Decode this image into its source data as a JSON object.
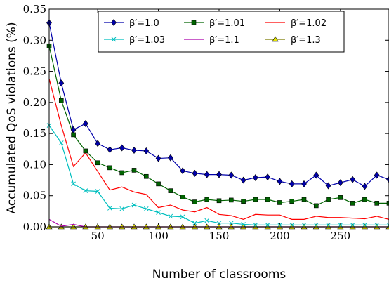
{
  "chart_data": {
    "type": "line",
    "xlabel": "Number of classrooms",
    "ylabel": "Accumulated QoS violations (%)",
    "xlim": [
      10,
      290
    ],
    "ylim": [
      0,
      0.35
    ],
    "xticks": [
      50,
      100,
      150,
      200,
      250
    ],
    "xtick_labels": [
      "50",
      "100",
      "150",
      "200",
      "250"
    ],
    "yticks": [
      0.0,
      0.05,
      0.1,
      0.15,
      0.2,
      0.25,
      0.3,
      0.35
    ],
    "ytick_labels": [
      "0.00",
      "0.05",
      "0.10",
      "0.15",
      "0.20",
      "0.25",
      "0.30",
      "0.35"
    ],
    "legend_position": "top-center",
    "x": [
      10,
      20,
      30,
      40,
      50,
      60,
      70,
      80,
      90,
      100,
      110,
      120,
      130,
      140,
      150,
      160,
      170,
      180,
      190,
      200,
      210,
      220,
      230,
      240,
      250,
      260,
      270,
      280,
      290
    ],
    "series": [
      {
        "name": "β′=1.0",
        "color": "#0000aa",
        "marker": "diamond",
        "values": [
          0.328,
          0.231,
          0.156,
          0.166,
          0.134,
          0.124,
          0.127,
          0.123,
          0.122,
          0.11,
          0.111,
          0.09,
          0.086,
          0.084,
          0.084,
          0.083,
          0.075,
          0.079,
          0.08,
          0.073,
          0.069,
          0.069,
          0.083,
          0.066,
          0.071,
          0.076,
          0.065,
          0.083,
          0.076
        ]
      },
      {
        "name": "β′=1.01",
        "color": "#006400",
        "marker": "square",
        "values": [
          0.291,
          0.203,
          0.148,
          0.122,
          0.103,
          0.095,
          0.087,
          0.091,
          0.081,
          0.069,
          0.058,
          0.048,
          0.04,
          0.044,
          0.042,
          0.043,
          0.041,
          0.044,
          0.044,
          0.039,
          0.041,
          0.044,
          0.034,
          0.044,
          0.047,
          0.038,
          0.044,
          0.038,
          0.038
        ]
      },
      {
        "name": "β′=1.02",
        "color": "#ff0000",
        "marker": "none",
        "values": [
          0.238,
          0.163,
          0.097,
          0.119,
          0.089,
          0.059,
          0.064,
          0.056,
          0.052,
          0.031,
          0.035,
          0.027,
          0.024,
          0.031,
          0.02,
          0.018,
          0.012,
          0.02,
          0.019,
          0.019,
          0.012,
          0.012,
          0.017,
          0.015,
          0.015,
          0.014,
          0.013,
          0.017,
          0.012
        ]
      },
      {
        "name": "β′=1.03",
        "color": "#00bfbf",
        "marker": "x",
        "values": [
          0.163,
          0.135,
          0.069,
          0.058,
          0.057,
          0.03,
          0.029,
          0.035,
          0.029,
          0.023,
          0.017,
          0.016,
          0.006,
          0.01,
          0.006,
          0.006,
          0.004,
          0.003,
          0.003,
          0.003,
          0.003,
          0.003,
          0.003,
          0.003,
          0.003,
          0.003,
          0.003,
          0.003,
          0.003
        ]
      },
      {
        "name": "β′=1.1",
        "color": "#aa00aa",
        "marker": "none",
        "values": [
          0.012,
          0.001,
          0.004,
          0.0,
          0.0,
          0.0,
          0.0,
          0.0,
          0.0,
          0.0,
          0.0,
          0.0,
          0.0,
          0.0,
          0.0,
          0.0,
          0.0,
          0.0,
          0.0,
          0.0,
          0.0,
          0.0,
          0.0,
          0.0,
          0.0,
          0.0,
          0.0,
          0.0,
          0.0
        ]
      },
      {
        "name": "β′=1.3",
        "color": "#7a7a00",
        "marker": "triangle",
        "values": [
          0.0,
          0.0,
          0.0,
          0.0,
          0.0,
          0.0,
          0.0,
          0.0,
          0.0,
          0.0,
          0.0,
          0.0,
          0.0,
          0.0,
          0.0,
          0.0,
          0.0,
          0.0,
          0.0,
          0.0,
          0.0,
          0.0,
          0.0,
          0.0,
          0.0,
          0.0,
          0.0,
          0.0,
          0.0
        ]
      }
    ]
  }
}
